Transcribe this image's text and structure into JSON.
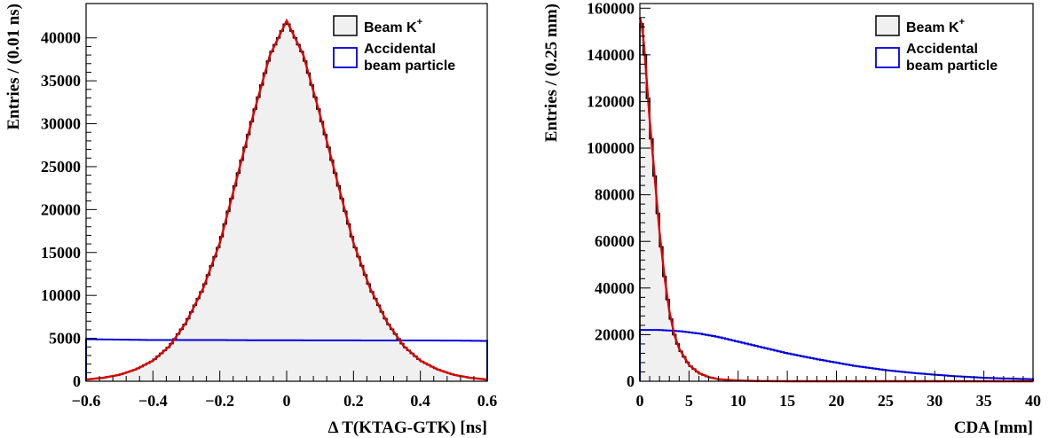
{
  "chart_data": [
    {
      "type": "area",
      "xlabel": "Δ T(KTAG-GTK) [ns]",
      "ylabel": "Entries / (0.01 ns)",
      "xlim": [
        -0.6,
        0.6
      ],
      "ylim": [
        0,
        44000
      ],
      "x_ticks": [
        "−0.6",
        "−0.4",
        "−0.2",
        "0",
        "0.2",
        "0.4",
        "0.6"
      ],
      "x_tick_values": [
        -0.6,
        -0.4,
        -0.2,
        0,
        0.2,
        0.4,
        0.6
      ],
      "y_ticks": [
        "0",
        "5000",
        "10000",
        "15000",
        "20000",
        "25000",
        "30000",
        "35000",
        "40000"
      ],
      "y_tick_values": [
        0,
        5000,
        10000,
        15000,
        20000,
        25000,
        30000,
        35000,
        40000
      ],
      "grid": false,
      "legend_position": "top-right",
      "series": [
        {
          "name": "Beam K+",
          "legend_text": [
            "Beam K",
            "+"
          ],
          "kind": "histogram",
          "color": "#000000",
          "fill": "#f0f0f0",
          "x": [
            -0.6,
            -0.55,
            -0.5,
            -0.45,
            -0.4,
            -0.35,
            -0.3,
            -0.25,
            -0.2,
            -0.15,
            -0.1,
            -0.05,
            0,
            0.05,
            0.1,
            0.15,
            0.2,
            0.25,
            0.3,
            0.35,
            0.4,
            0.45,
            0.5,
            0.55,
            0.6
          ],
          "values": [
            200,
            400,
            750,
            1400,
            2400,
            4100,
            6900,
            10800,
            16100,
            23500,
            31000,
            38000,
            42000,
            38000,
            31000,
            23500,
            16100,
            10800,
            6900,
            4100,
            2400,
            1400,
            750,
            400,
            200
          ]
        },
        {
          "name": "Accidental beam particle",
          "legend_text": [
            "Accidental",
            "beam particle"
          ],
          "kind": "histogram",
          "color": "#0000dd",
          "x": [
            -0.6,
            -0.5,
            -0.4,
            -0.3,
            -0.2,
            -0.1,
            0,
            0.1,
            0.2,
            0.3,
            0.4,
            0.5,
            0.6
          ],
          "values": [
            4900,
            4850,
            4800,
            4800,
            4800,
            4780,
            4780,
            4760,
            4760,
            4750,
            4750,
            4740,
            4700
          ]
        },
        {
          "name": "fit",
          "kind": "curve",
          "color": "#dd0000",
          "x": [
            -0.6,
            -0.55,
            -0.5,
            -0.45,
            -0.4,
            -0.35,
            -0.3,
            -0.25,
            -0.2,
            -0.15,
            -0.1,
            -0.05,
            0,
            0.05,
            0.1,
            0.15,
            0.2,
            0.25,
            0.3,
            0.35,
            0.4,
            0.45,
            0.5,
            0.55,
            0.6
          ],
          "values": [
            200,
            400,
            750,
            1400,
            2400,
            4100,
            6900,
            10800,
            16100,
            23500,
            31000,
            38000,
            42000,
            38000,
            31000,
            23500,
            16100,
            10800,
            6900,
            4100,
            2400,
            1400,
            750,
            400,
            200
          ]
        }
      ]
    },
    {
      "type": "area",
      "xlabel": "CDA [mm]",
      "ylabel": "Entries / (0.25 mm)",
      "xlim": [
        0,
        40
      ],
      "ylim": [
        0,
        162000
      ],
      "x_ticks": [
        "0",
        "5",
        "10",
        "15",
        "20",
        "25",
        "30",
        "35",
        "40"
      ],
      "x_tick_values": [
        0,
        5,
        10,
        15,
        20,
        25,
        30,
        35,
        40
      ],
      "y_ticks": [
        "0",
        "20000",
        "40000",
        "60000",
        "80000",
        "100000",
        "120000",
        "140000",
        "160000"
      ],
      "y_tick_values": [
        0,
        20000,
        40000,
        60000,
        80000,
        100000,
        120000,
        140000,
        160000
      ],
      "grid": false,
      "legend_position": "top-right",
      "series": [
        {
          "name": "Beam K+",
          "legend_text": [
            "Beam K",
            "+"
          ],
          "kind": "histogram",
          "color": "#000000",
          "fill": "#f0f0f0",
          "x": [
            0,
            0.25,
            0.5,
            1,
            1.5,
            2,
            2.5,
            3,
            3.5,
            4,
            5,
            6,
            7,
            8,
            10,
            12,
            15,
            20,
            25,
            30,
            35,
            40
          ],
          "values": [
            156000,
            152000,
            140000,
            112000,
            88000,
            64000,
            45000,
            30000,
            20000,
            14000,
            7000,
            3500,
            1800,
            900,
            300,
            100,
            0,
            0,
            0,
            0,
            0,
            0
          ]
        },
        {
          "name": "Accidental beam particle",
          "legend_text": [
            "Accidental",
            "beam particle"
          ],
          "kind": "histogram",
          "color": "#0000dd",
          "x": [
            0,
            2,
            4,
            6,
            8,
            10,
            12,
            15,
            18,
            20,
            22,
            25,
            28,
            30,
            32,
            35,
            38,
            40
          ],
          "values": [
            22000,
            22000,
            21500,
            20500,
            19000,
            17000,
            15000,
            12000,
            9500,
            8000,
            6500,
            4800,
            3500,
            2800,
            2200,
            1500,
            1100,
            900
          ]
        },
        {
          "name": "fit",
          "kind": "curve",
          "color": "#dd0000",
          "x": [
            0,
            0.25,
            0.5,
            1,
            1.5,
            2,
            2.5,
            3,
            3.5,
            4,
            5,
            6,
            7,
            8,
            10,
            12,
            15,
            20,
            25,
            30,
            35,
            40
          ],
          "values": [
            156000,
            152000,
            140000,
            112000,
            88000,
            64000,
            45000,
            30000,
            20000,
            14000,
            7000,
            3500,
            1800,
            900,
            300,
            100,
            0,
            0,
            0,
            0,
            0,
            0
          ]
        }
      ]
    }
  ]
}
